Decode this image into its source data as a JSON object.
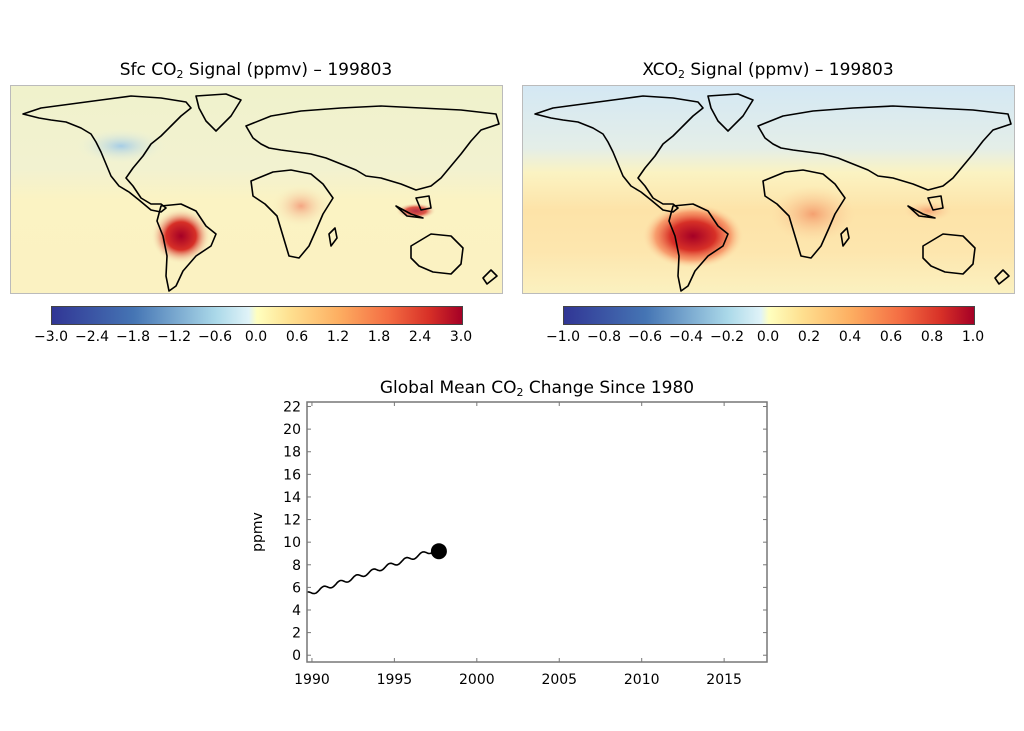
{
  "maps": [
    {
      "title_prefix": "Sfc CO",
      "title_sub": "2",
      "title_suffix": " Signal (ppmv) – 199803",
      "colorbar_ticks": [
        "−3.0",
        "−2.4",
        "−1.8",
        "−1.2",
        "−0.6",
        "0.0",
        "0.6",
        "1.2",
        "1.8",
        "2.4",
        "3.0"
      ],
      "colorbar_range": [
        -3.0,
        3.0
      ]
    },
    {
      "title_prefix": "XCO",
      "title_sub": "2",
      "title_suffix": " Signal (ppmv) – 199803",
      "colorbar_ticks": [
        "−1.0",
        "−0.8",
        "−0.6",
        "−0.4",
        "−0.2",
        "0.0",
        "0.2",
        "0.4",
        "0.6",
        "0.8",
        "1.0"
      ],
      "colorbar_range": [
        -1.0,
        1.0
      ]
    }
  ],
  "colors": {
    "cmap_low": "#313695",
    "cmap_mid_low": "#abd9e9",
    "cmap_zero": "#ffffbf",
    "cmap_mid_high": "#fdae61",
    "cmap_high": "#a50026",
    "map_background": "#f8f4c4",
    "line": "#000000"
  },
  "chart_data": {
    "type": "line",
    "title_prefix": "Global Mean CO",
    "title_sub": "2",
    "title_suffix": " Change Since 1980",
    "xlabel": "",
    "ylabel": "ppmv",
    "xlim": [
      1989.7,
      2017.6
    ],
    "ylim": [
      -0.6,
      22.4
    ],
    "xticks": [
      "1990",
      "1995",
      "2000",
      "2005",
      "2010",
      "2015"
    ],
    "yticks": [
      "0",
      "2",
      "4",
      "6",
      "8",
      "10",
      "12",
      "14",
      "16",
      "18",
      "20",
      "22"
    ],
    "series": [
      {
        "name": "global mean",
        "start_year": 1989.7,
        "end_year": 1997.6,
        "start_value": 5.4,
        "end_value": 9.4,
        "seasonal_amplitude": 0.18
      }
    ],
    "marker": {
      "x": 1997.7,
      "y": 9.2
    }
  }
}
